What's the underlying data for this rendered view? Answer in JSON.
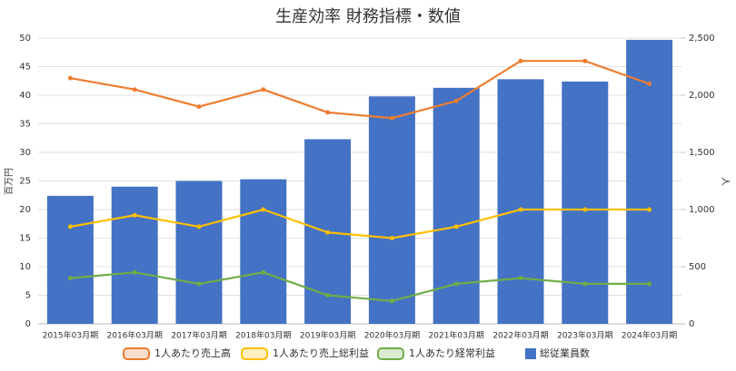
{
  "chart_data": {
    "type": "bar",
    "title": "生産効率 財務指標・数値",
    "categories": [
      "2015年03月期",
      "2016年03月期",
      "2017年03月期",
      "2018年03月期",
      "2019年03月期",
      "2020年03月期",
      "2021年03月期",
      "2022年03月期",
      "2023年03月期",
      "2024年03月期"
    ],
    "series": [
      {
        "name": "1人あたり売上高",
        "type": "line",
        "color": "#ed7d31",
        "values": [
          43,
          41,
          38,
          41,
          37,
          36,
          39,
          46,
          46,
          42
        ]
      },
      {
        "name": "1人あたり売上総利益",
        "type": "line",
        "color": "#ffc000",
        "values": [
          17,
          19,
          17,
          20,
          16,
          15,
          17,
          20,
          20,
          20
        ]
      },
      {
        "name": "1人あたり経常利益",
        "type": "line",
        "color": "#70ad47",
        "values": [
          8,
          9,
          7,
          9,
          5,
          4,
          7,
          8,
          7,
          7
        ]
      },
      {
        "name": "総従業員数",
        "type": "bar",
        "axis": "y2",
        "color": "#4472c4",
        "values": [
          1120,
          1200,
          1250,
          1265,
          1615,
          1990,
          2065,
          2140,
          2120,
          2485
        ]
      }
    ],
    "ylabel": "百万円",
    "y2label": "人",
    "ylim": [
      0,
      50
    ],
    "yticks": [
      0,
      5,
      10,
      15,
      20,
      25,
      30,
      35,
      40,
      45,
      50
    ],
    "y2lim": [
      0,
      2500
    ],
    "y2ticks": [
      0,
      500,
      {
        "value": 1000,
        "label": "1,000"
      },
      {
        "value": 1500,
        "label": "1,500"
      },
      {
        "value": 2000,
        "label": "2,000"
      },
      {
        "value": 2500,
        "label": "2,500"
      }
    ],
    "grid": true,
    "legend": "bottom"
  }
}
